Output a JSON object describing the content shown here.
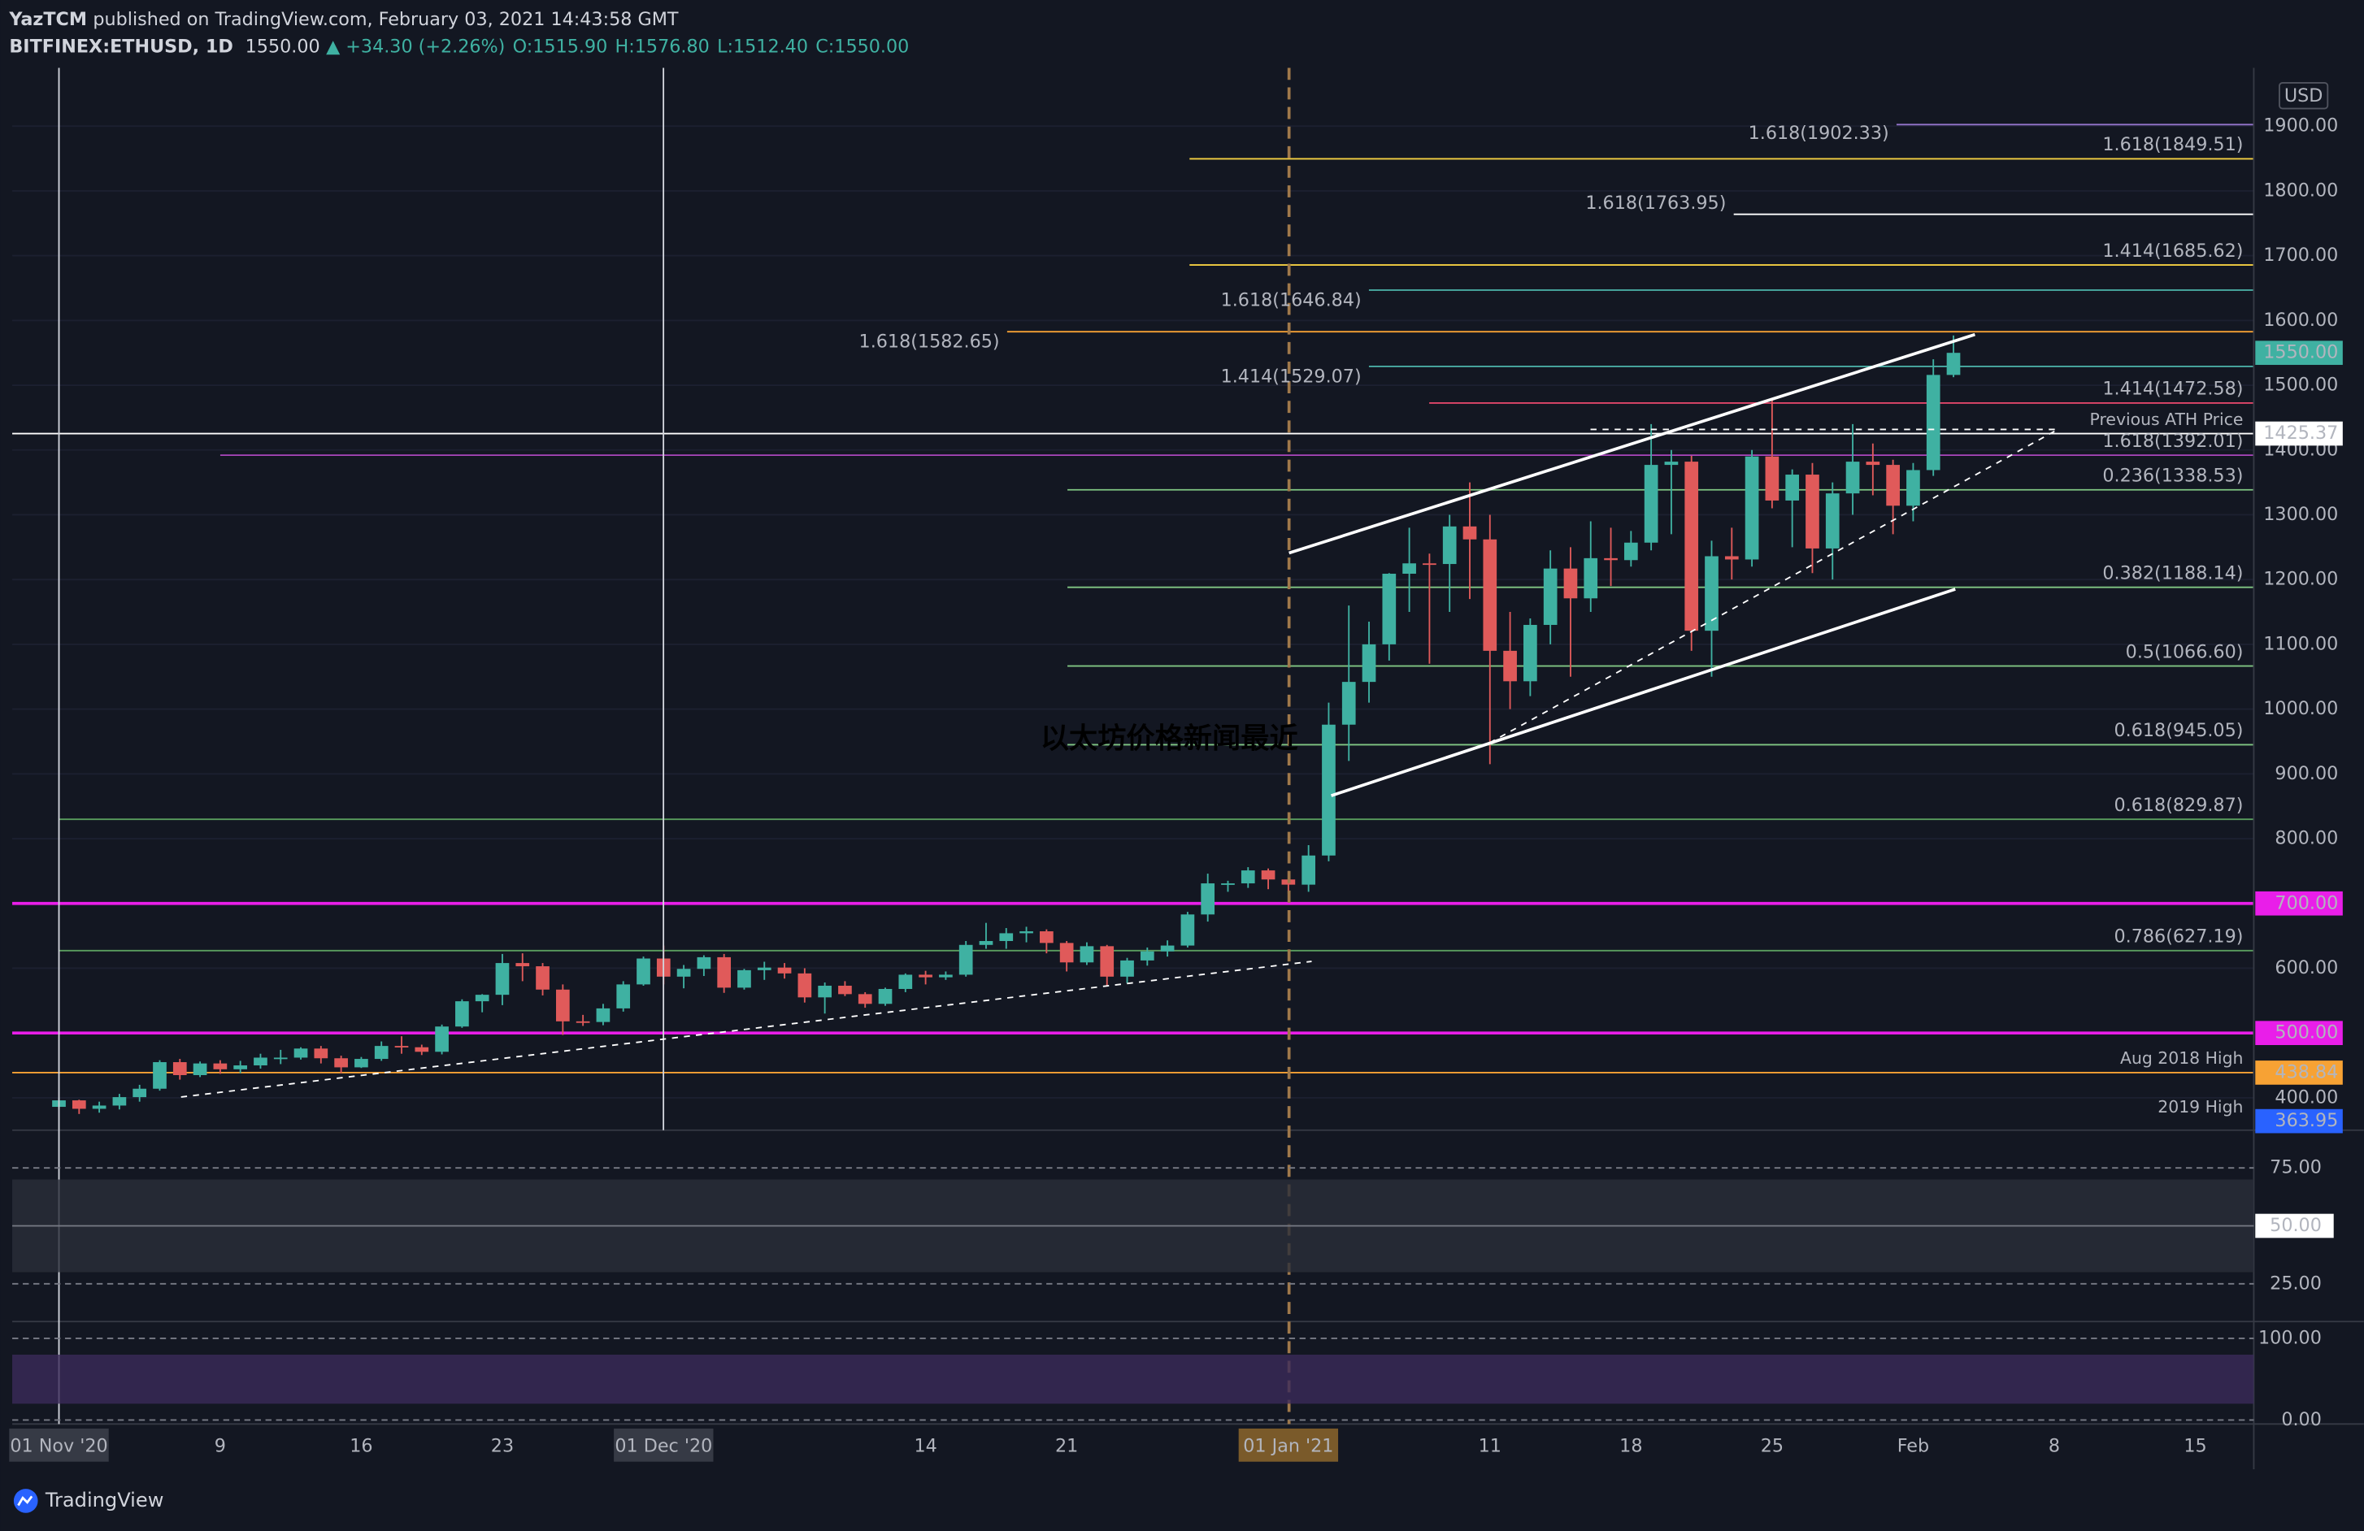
{
  "header": {
    "author": "YazTCM",
    "published": "published on TradingView.com, February 03, 2021 14:43:58 GMT",
    "symbol": "BITFINEX:ETHUSD, 1D",
    "last": "1550.00",
    "change": "▲ +34.30 (+2.26%)",
    "open": "O:1515.90",
    "high": "H:1576.80",
    "low": "L:1512.40",
    "close": "C:1550.00"
  },
  "watermark": "以太坊价格新闻最近",
  "footer": "TradingView",
  "currency": "USD",
  "chart_data": {
    "type": "candlestick",
    "candles": {
      "open": [
        386,
        396,
        383,
        388,
        401,
        414,
        455,
        435,
        453,
        444,
        450,
        462,
        462,
        476,
        461,
        447,
        460,
        480,
        478,
        471,
        510,
        549,
        559,
        608,
        603,
        567,
        518,
        517,
        538,
        575,
        615,
        587,
        599,
        617,
        570,
        597,
        601,
        592,
        555,
        573,
        560,
        545,
        568,
        590,
        586,
        590,
        636,
        642,
        654,
        657,
        639,
        609,
        634,
        587,
        612,
        626,
        635,
        683,
        731,
        731,
        751,
        737,
        729,
        774,
        976,
        1042,
        1100,
        1209,
        1225,
        1224,
        1282,
        1262,
        1090,
        1043,
        1130,
        1217,
        1171,
        1233,
        1230,
        1257,
        1377,
        1382,
        1121,
        1236,
        1231,
        1390,
        1322,
        1362,
        1248,
        1333,
        1382,
        1377,
        1314,
        1369,
        1515.9
      ],
      "high": [
        400,
        397,
        394,
        406,
        420,
        458,
        460,
        456,
        458,
        457,
        468,
        474,
        478,
        480,
        465,
        463,
        487,
        495,
        482,
        513,
        552,
        560,
        622,
        623,
        608,
        575,
        528,
        545,
        580,
        618,
        635,
        605,
        620,
        622,
        599,
        610,
        608,
        600,
        578,
        580,
        563,
        570,
        592,
        596,
        595,
        642,
        670,
        662,
        664,
        660,
        642,
        640,
        636,
        616,
        632,
        643,
        687,
        746,
        735,
        756,
        754,
        750,
        790,
        1010,
        1160,
        1135,
        1210,
        1280,
        1240,
        1300,
        1350,
        1300,
        1150,
        1140,
        1245,
        1250,
        1290,
        1280,
        1275,
        1440,
        1400,
        1391,
        1260,
        1280,
        1400,
        1480,
        1370,
        1380,
        1350,
        1440,
        1410,
        1385,
        1380,
        1540,
        1576.8
      ],
      "low": [
        382,
        375,
        377,
        382,
        394,
        411,
        428,
        432,
        437,
        438,
        445,
        452,
        459,
        453,
        438,
        446,
        457,
        468,
        466,
        467,
        508,
        532,
        543,
        580,
        558,
        497,
        511,
        512,
        533,
        573,
        575,
        569,
        588,
        562,
        567,
        582,
        584,
        547,
        530,
        557,
        539,
        542,
        563,
        575,
        582,
        587,
        630,
        630,
        640,
        623,
        595,
        605,
        572,
        577,
        604,
        618,
        632,
        672,
        718,
        724,
        722,
        715,
        718,
        765,
        920,
        1010,
        1075,
        1150,
        1070,
        1150,
        1170,
        915,
        1000,
        1020,
        1100,
        1050,
        1150,
        1190,
        1220,
        1245,
        1270,
        1090,
        1050,
        1200,
        1220,
        1310,
        1250,
        1210,
        1200,
        1300,
        1330,
        1270,
        1290,
        1360,
        1512.4
      ],
      "close": [
        396,
        383,
        388,
        401,
        414,
        455,
        435,
        453,
        444,
        450,
        462,
        462,
        476,
        461,
        447,
        460,
        480,
        478,
        471,
        510,
        549,
        559,
        608,
        603,
        567,
        518,
        517,
        538,
        575,
        615,
        587,
        599,
        617,
        570,
        597,
        601,
        592,
        555,
        573,
        560,
        545,
        568,
        590,
        586,
        590,
        636,
        642,
        654,
        657,
        639,
        609,
        634,
        587,
        612,
        626,
        635,
        683,
        731,
        731,
        751,
        737,
        729,
        774,
        976,
        1042,
        1100,
        1209,
        1225,
        1224,
        1282,
        1262,
        1090,
        1043,
        1130,
        1217,
        1171,
        1233,
        1230,
        1257,
        1377,
        1382,
        1121,
        1236,
        1231,
        1390,
        1322,
        1362,
        1248,
        1333,
        1382,
        1377,
        1314,
        1369,
        1515.9,
        1550
      ]
    },
    "up_color": "#3fb1a2",
    "down_color": "#e05a5a",
    "ylim": [
      350,
      1990
    ],
    "yticks": [
      {
        "value": 400,
        "label": "400.00"
      },
      {
        "value": 600,
        "label": "600.00"
      },
      {
        "value": 800,
        "label": "800.00"
      },
      {
        "value": 900,
        "label": "900.00"
      },
      {
        "value": 1000,
        "label": "1000.00"
      },
      {
        "value": 1100,
        "label": "1100.00"
      },
      {
        "value": 1200,
        "label": "1200.00"
      },
      {
        "value": 1300,
        "label": "1300.00"
      },
      {
        "value": 1400,
        "label": "1400.00"
      },
      {
        "value": 1500,
        "label": "1500.00"
      },
      {
        "value": 1600,
        "label": "1600.00"
      },
      {
        "value": 1700,
        "label": "1700.00"
      },
      {
        "value": 1800,
        "label": "1800.00"
      },
      {
        "value": 1900,
        "label": "1900.00"
      }
    ],
    "xticks": [
      {
        "value": 0,
        "label": "01 Nov '20"
      },
      {
        "value": 8,
        "label": "9"
      },
      {
        "value": 15,
        "label": "16"
      },
      {
        "value": 22,
        "label": "23"
      },
      {
        "value": 30,
        "label": "01 Dec '20"
      },
      {
        "value": 43,
        "label": "14"
      },
      {
        "value": 50,
        "label": "21"
      },
      {
        "value": 61,
        "label": "01 Jan '21"
      },
      {
        "value": 71,
        "label": "11"
      },
      {
        "value": 78,
        "label": "18"
      },
      {
        "value": 85,
        "label": "25"
      },
      {
        "value": 92,
        "label": "Feb"
      },
      {
        "value": 99,
        "label": "8"
      },
      {
        "value": 106,
        "label": "15"
      }
    ],
    "levels": [
      {
        "label": "1.618(1902.33)",
        "value": 1902.33,
        "color": "#9575cd"
      },
      {
        "label": "1.618(1849.51)",
        "value": 1849.51,
        "color": "#f5d142"
      },
      {
        "label": "1.618(1763.95)",
        "value": 1763.95,
        "color": "#ffffff"
      },
      {
        "label": "1.414(1685.62)",
        "value": 1685.62,
        "color": "#f5d142"
      },
      {
        "label": "1.618(1646.84)",
        "value": 1646.84,
        "color": "#4db6ac"
      },
      {
        "label": "1.618(1582.65)",
        "value": 1582.65,
        "color": "#f7a234"
      },
      {
        "label": "1.414(1529.07)",
        "value": 1529.07,
        "color": "#4db6ac"
      },
      {
        "label": "1.414(1472.58)",
        "value": 1472.58,
        "color": "#e0476a"
      },
      {
        "label": "Previous ATH Price",
        "value": 1425.37,
        "color": "#ffffff"
      },
      {
        "label": "1.618(1392.01)",
        "value": 1392.01,
        "color": "#ab47bc"
      },
      {
        "label": "0.236(1338.53)",
        "value": 1338.53,
        "color": "#81c784"
      },
      {
        "label": "0.382(1188.14)",
        "value": 1188.14,
        "color": "#81c784"
      },
      {
        "label": "0.5(1066.60)",
        "value": 1066.6,
        "color": "#81c784"
      },
      {
        "label": "0.618(945.05)",
        "value": 945.05,
        "color": "#81c784"
      },
      {
        "label": "0.618(829.87)",
        "value": 829.87,
        "color": "#5a9e5e"
      },
      {
        "label": "0.786(627.19)",
        "value": 627.19,
        "color": "#5a9e5e"
      },
      {
        "label": "Aug 2018 High",
        "value": 438.84,
        "color": "#f7a234"
      },
      {
        "label": "2019 High",
        "value": 363.95,
        "color": "#5d6b8a"
      }
    ],
    "magenta_levels": [
      700,
      500
    ],
    "magenta_color": "#e91ee9",
    "tags": [
      {
        "value": 1550,
        "label": "1550.00",
        "bg": "#3fb1a2",
        "fg": "#ffffff"
      },
      {
        "value": 1425.37,
        "label": "1425.37",
        "bg": "#ffffff",
        "fg": "#131722"
      },
      {
        "value": 700,
        "label": "700.00",
        "bg": "#e91ee9",
        "fg": "#ffffff"
      },
      {
        "value": 500,
        "label": "500.00",
        "bg": "#e91ee9",
        "fg": "#ffffff"
      },
      {
        "value": 438.84,
        "label": "438.84",
        "bg": "#f7a234",
        "fg": "#131722"
      },
      {
        "value": 363.95,
        "label": "363.95",
        "bg": "#2962ff",
        "fg": "#ffffff"
      }
    ],
    "rsi": {
      "ylim": [
        10,
        90
      ],
      "yticks": [
        {
          "value": 25,
          "label": "25.00"
        },
        {
          "value": 50,
          "label": "50.00"
        },
        {
          "value": 75,
          "label": "75.00"
        }
      ],
      "band": [
        30,
        70
      ]
    },
    "stoch": {
      "ylim": [
        -3,
        115
      ],
      "yticks": [
        {
          "value": 0,
          "label": "0.00"
        },
        {
          "value": 100,
          "label": "100.00"
        }
      ],
      "band": [
        20,
        80
      ]
    }
  }
}
